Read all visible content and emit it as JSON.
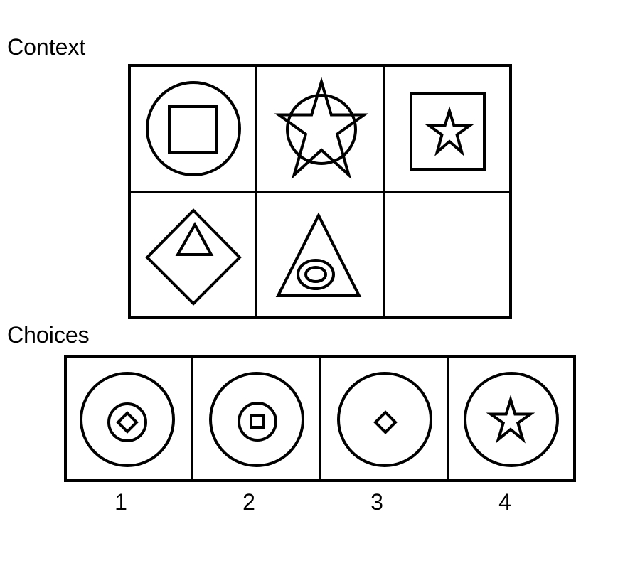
{
  "context": {
    "title": "Context",
    "cells": [
      {
        "outer": "circle-icon",
        "inner": "square-icon"
      },
      {
        "outer": "circle-icon",
        "inner": "large-star-icon"
      },
      {
        "outer": "square-icon",
        "inner": "star-icon"
      },
      {
        "outer": "diamond-icon",
        "inner": "triangle-icon"
      },
      {
        "outer": "triangle-icon",
        "inner": "double-ellipse-icon"
      },
      {
        "outer": "",
        "inner": ""
      }
    ]
  },
  "choices": {
    "title": "Choices",
    "items": [
      {
        "label": "1",
        "outer": "circle-icon",
        "inner": "circle-with-diamond-icon"
      },
      {
        "label": "2",
        "outer": "circle-icon",
        "inner": "circle-with-square-icon"
      },
      {
        "label": "3",
        "outer": "circle-icon",
        "inner": "diamond-icon"
      },
      {
        "label": "4",
        "outer": "circle-icon",
        "inner": "star-icon"
      }
    ]
  }
}
